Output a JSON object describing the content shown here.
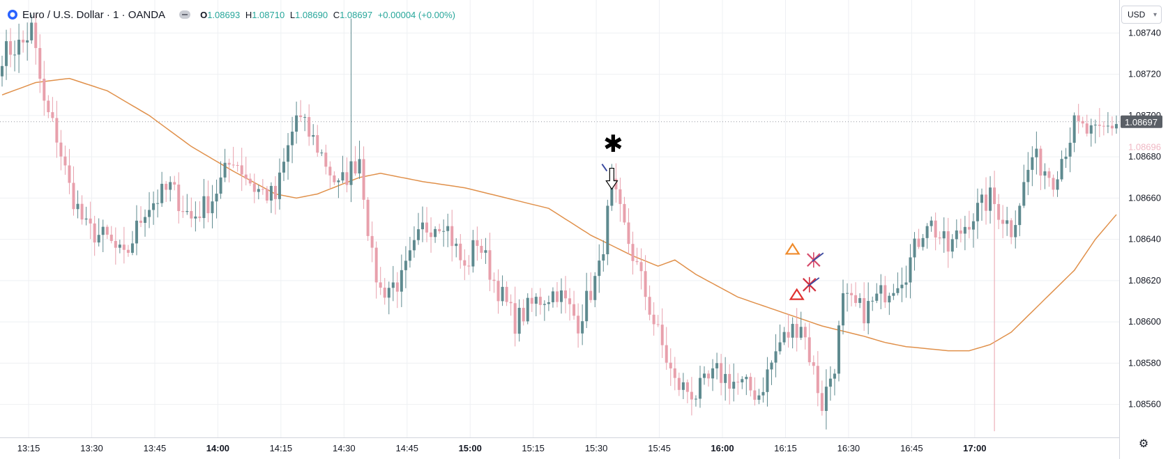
{
  "header": {
    "symbol_title": "Euro / U.S. Dollar · 1 · OANDA",
    "ohlc": [
      {
        "key": "O",
        "value": "1.08693"
      },
      {
        "key": "H",
        "value": "1.08710"
      },
      {
        "key": "L",
        "value": "1.08690"
      },
      {
        "key": "C",
        "value": "1.08697"
      },
      {
        "key": "",
        "value": "+0.00004 (+0.00%)"
      }
    ]
  },
  "currency_button": {
    "label": "USD"
  },
  "colors": {
    "up": "#5e8a8f",
    "down": "#e8a0ac",
    "ma": "#e0904a",
    "grid": "#eef0f3",
    "price_tag": "#5a5f66",
    "price_tag_secondary": "#f0b8c4"
  },
  "chart_data": {
    "type": "candlestick",
    "y_axis": {
      "ticks": [
        "1.08740",
        "1.08720",
        "1.08700",
        "1.08680",
        "1.08660",
        "1.08640",
        "1.08620",
        "1.08600",
        "1.08580",
        "1.08560"
      ],
      "ylim": [
        1.08544,
        1.08756
      ]
    },
    "x_axis": {
      "ticks": [
        {
          "label": "13:15",
          "bold": false
        },
        {
          "label": "13:30",
          "bold": false
        },
        {
          "label": "13:45",
          "bold": false
        },
        {
          "label": "14:00",
          "bold": true
        },
        {
          "label": "14:15",
          "bold": false
        },
        {
          "label": "14:30",
          "bold": false
        },
        {
          "label": "14:45",
          "bold": false
        },
        {
          "label": "15:00",
          "bold": true
        },
        {
          "label": "15:15",
          "bold": false
        },
        {
          "label": "15:30",
          "bold": false
        },
        {
          "label": "15:45",
          "bold": false
        },
        {
          "label": "16:00",
          "bold": true
        },
        {
          "label": "16:15",
          "bold": false
        },
        {
          "label": "16:30",
          "bold": false
        },
        {
          "label": "16:45",
          "bold": false
        },
        {
          "label": "17:00",
          "bold": true
        }
      ]
    },
    "price_labels": {
      "current": "1.08697",
      "secondary": "1.08696"
    },
    "close_keypoints": [
      [
        0,
        1.0873
      ],
      [
        5,
        1.08735
      ],
      [
        7,
        1.08742
      ],
      [
        10,
        1.08705
      ],
      [
        13,
        1.0869
      ],
      [
        16,
        1.08665
      ],
      [
        20,
        1.08645
      ],
      [
        25,
        1.0864
      ],
      [
        29,
        1.0863
      ],
      [
        34,
        1.08655
      ],
      [
        40,
        1.08665
      ],
      [
        45,
        1.0865
      ],
      [
        50,
        1.0866
      ],
      [
        55,
        1.0868
      ],
      [
        60,
        1.08665
      ],
      [
        65,
        1.0866
      ],
      [
        70,
        1.087
      ],
      [
        75,
        1.08685
      ],
      [
        80,
        1.08665
      ],
      [
        85,
        1.0868
      ],
      [
        88,
        1.0863
      ],
      [
        90,
        1.08615
      ],
      [
        95,
        1.0862
      ],
      [
        100,
        1.08645
      ],
      [
        105,
        1.0865
      ],
      [
        110,
        1.08625
      ],
      [
        113,
        1.0864
      ],
      [
        117,
        1.0862
      ],
      [
        122,
        1.086
      ],
      [
        127,
        1.0861
      ],
      [
        132,
        1.08615
      ],
      [
        137,
        1.086
      ],
      [
        142,
        1.08625
      ],
      [
        145,
        1.08665
      ],
      [
        148,
        1.08645
      ],
      [
        152,
        1.0862
      ],
      [
        155,
        1.086
      ],
      [
        160,
        1.0857
      ],
      [
        165,
        1.08565
      ],
      [
        170,
        1.08575
      ],
      [
        175,
        1.0857
      ],
      [
        180,
        1.08565
      ],
      [
        185,
        1.0859
      ],
      [
        190,
        1.086
      ],
      [
        195,
        1.0856
      ],
      [
        198,
        1.0858
      ],
      [
        200,
        1.0861
      ],
      [
        205,
        1.08605
      ],
      [
        210,
        1.08615
      ],
      [
        215,
        1.08625
      ],
      [
        220,
        1.0865
      ],
      [
        225,
        1.08635
      ],
      [
        230,
        1.0865
      ],
      [
        235,
        1.0866
      ],
      [
        240,
        1.08645
      ],
      [
        245,
        1.0868
      ],
      [
        250,
        1.0867
      ],
      [
        255,
        1.08695
      ],
      [
        260,
        1.0869
      ],
      [
        265,
        1.08697
      ]
    ],
    "spikes": [
      {
        "index": 83,
        "high": 1.08747
      },
      {
        "index": 236,
        "low": 1.08547
      }
    ],
    "ma_keypoints": [
      [
        0,
        1.0871
      ],
      [
        8,
        1.08716
      ],
      [
        16,
        1.08718
      ],
      [
        25,
        1.08712
      ],
      [
        35,
        1.087
      ],
      [
        45,
        1.08685
      ],
      [
        55,
        1.08673
      ],
      [
        65,
        1.08662
      ],
      [
        70,
        1.0866
      ],
      [
        75,
        1.08662
      ],
      [
        85,
        1.0867
      ],
      [
        90,
        1.08672
      ],
      [
        100,
        1.08668
      ],
      [
        110,
        1.08665
      ],
      [
        120,
        1.0866
      ],
      [
        130,
        1.08655
      ],
      [
        140,
        1.08642
      ],
      [
        150,
        1.08632
      ],
      [
        156,
        1.08627
      ],
      [
        160,
        1.0863
      ],
      [
        165,
        1.08623
      ],
      [
        175,
        1.08612
      ],
      [
        185,
        1.08605
      ],
      [
        195,
        1.08598
      ],
      [
        205,
        1.08593
      ],
      [
        210,
        1.0859
      ],
      [
        215,
        1.08588
      ],
      [
        220,
        1.08587
      ],
      [
        225,
        1.08586
      ],
      [
        230,
        1.08586
      ],
      [
        235,
        1.08589
      ],
      [
        240,
        1.08595
      ],
      [
        245,
        1.08605
      ],
      [
        250,
        1.08615
      ],
      [
        255,
        1.08625
      ],
      [
        260,
        1.0864
      ],
      [
        265,
        1.08652
      ]
    ]
  },
  "annotations": [
    {
      "type": "star",
      "time_index": 145,
      "price": 1.08683,
      "symbol": "✱"
    },
    {
      "type": "arrow-down",
      "time_index": 145,
      "price": 1.08665
    },
    {
      "type": "triangle-up",
      "time_index": 188,
      "price": 1.08635,
      "color": "#ef8a2a"
    },
    {
      "type": "triangle-up",
      "time_index": 189,
      "price": 1.08613,
      "color": "#e0312f"
    },
    {
      "type": "cross",
      "time_index": 193,
      "price": 1.0863,
      "color": "#d64a6a"
    },
    {
      "type": "cross",
      "time_index": 192,
      "price": 1.08618,
      "color": "#d22e3e"
    }
  ]
}
